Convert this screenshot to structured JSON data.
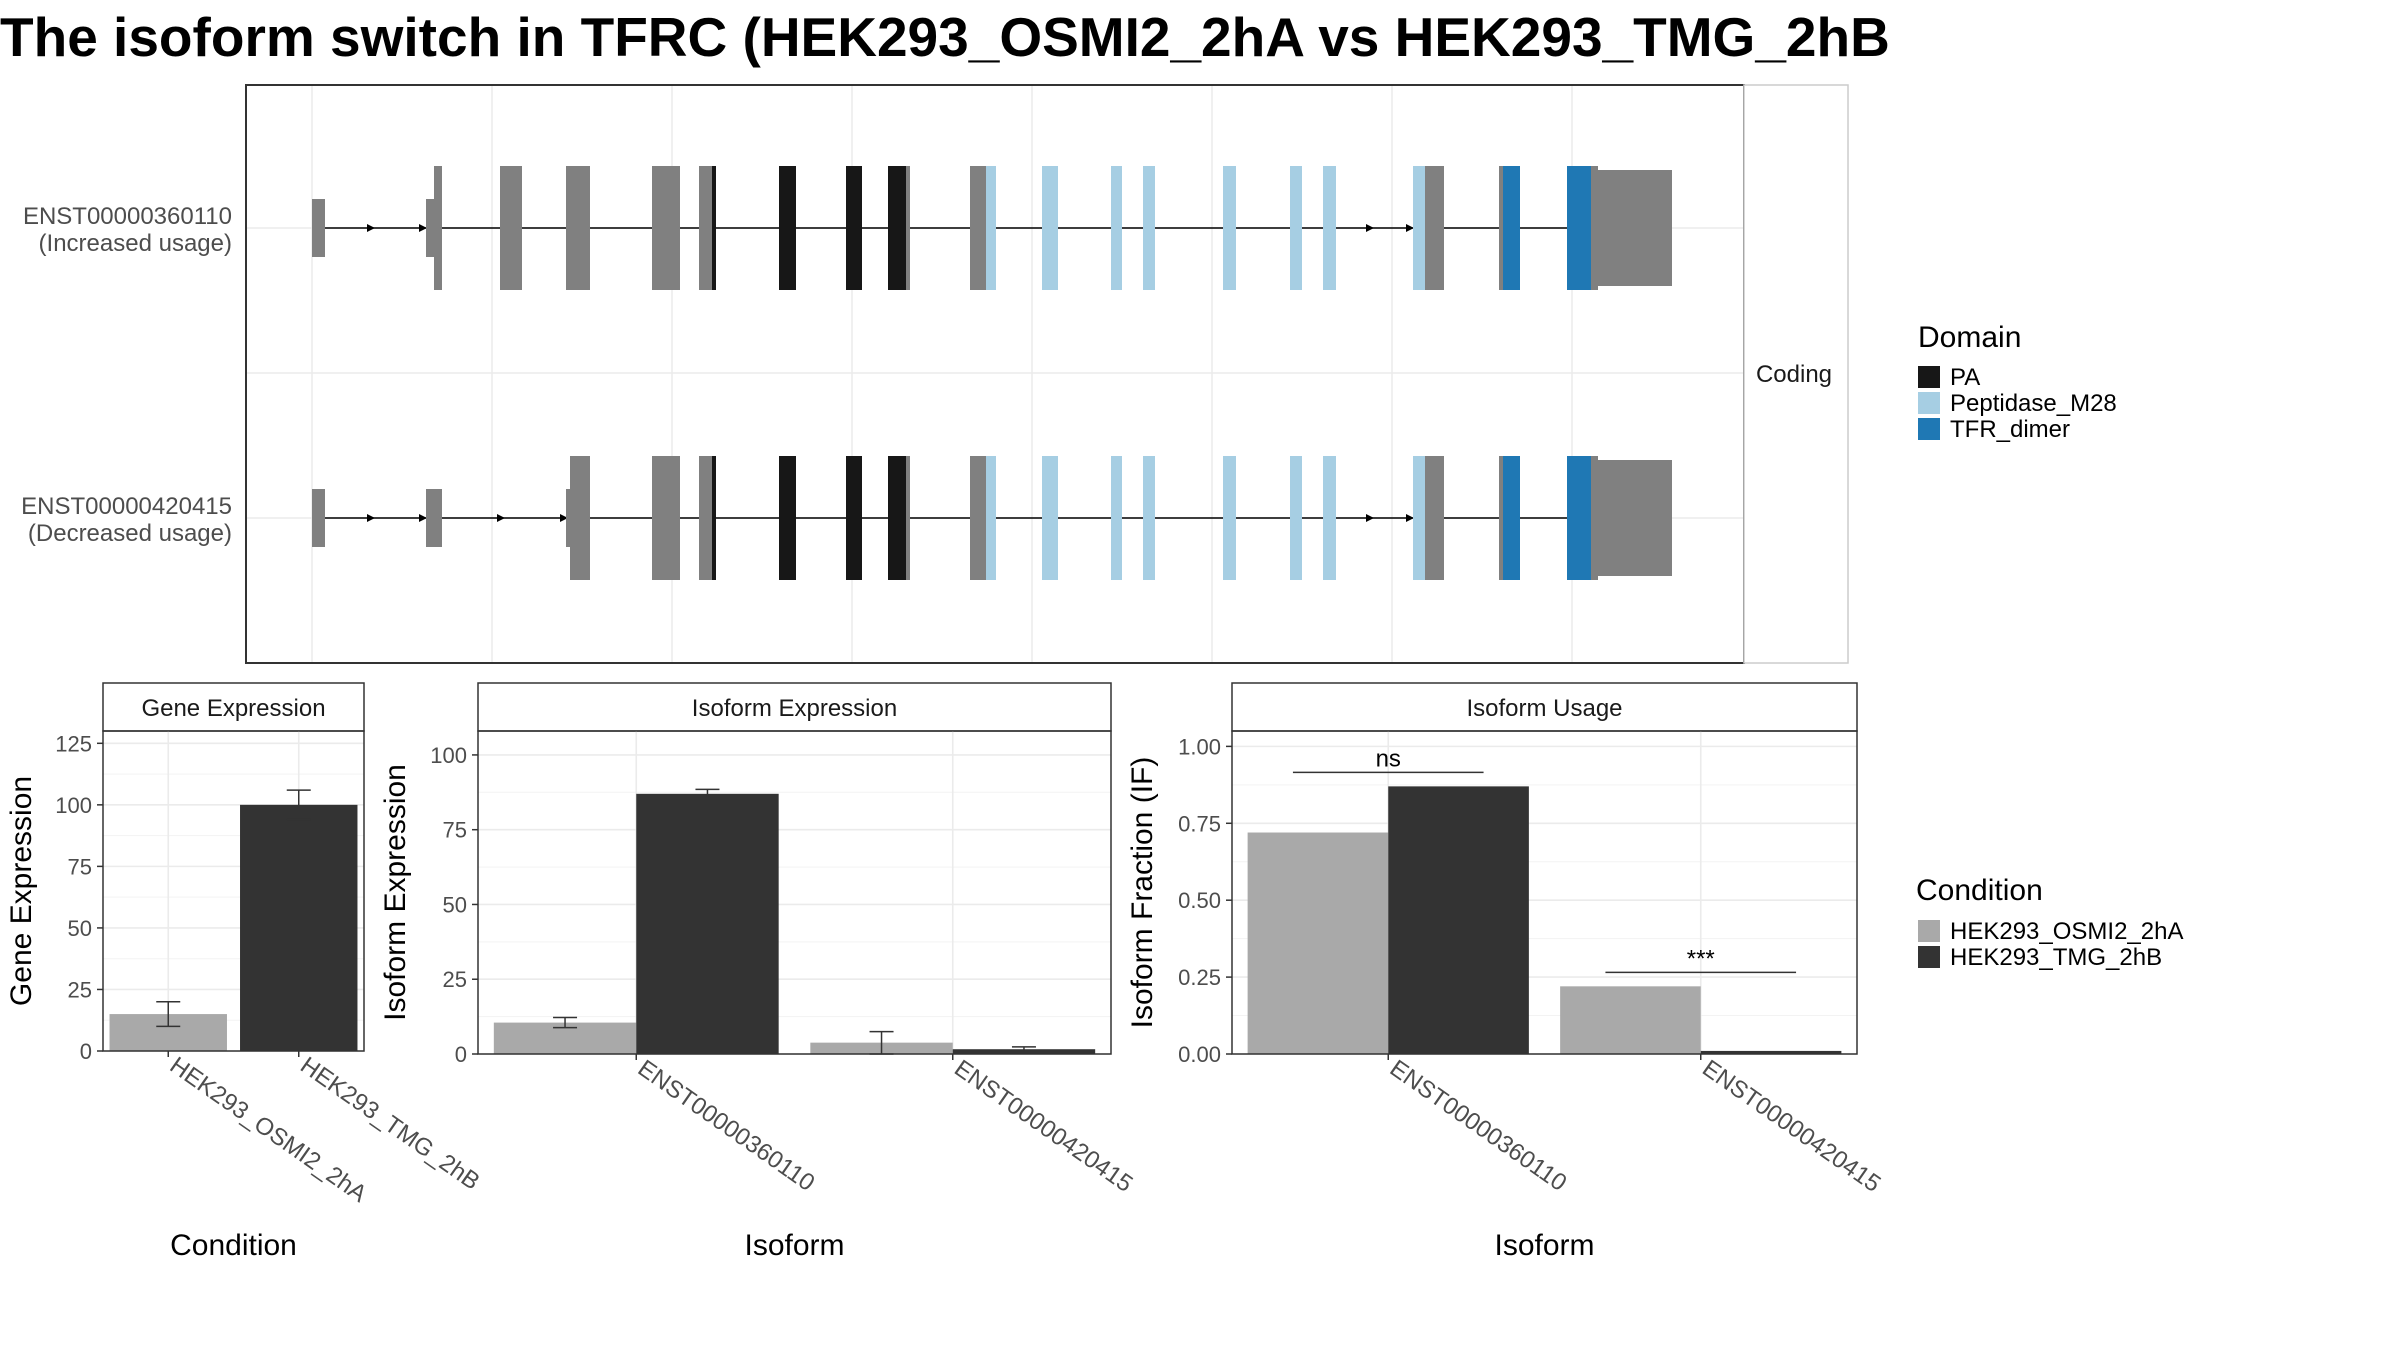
{
  "title": "The isoform switch in TFRC (HEK293_OSMI2_2hA vs HEK293_TMG_2hB",
  "strip_label": "Coding",
  "colors": {
    "exon": "#808080",
    "PA": "#171717",
    "Peptidase_M28": "#A6CEE3",
    "TFR_dimer": "#1F78B4",
    "cond_a": "#A9A9A9",
    "cond_b": "#333333"
  },
  "legends": {
    "domain": {
      "title": "Domain",
      "items": [
        {
          "label": "PA",
          "color": "#171717"
        },
        {
          "label": "Peptidase_M28",
          "color": "#A6CEE3"
        },
        {
          "label": "TFR_dimer",
          "color": "#1F78B4"
        }
      ]
    },
    "condition": {
      "title": "Condition",
      "items": [
        {
          "label": "HEK293_OSMI2_2hA",
          "color": "#A9A9A9"
        },
        {
          "label": "HEK293_TMG_2hB",
          "color": "#333333"
        }
      ]
    }
  },
  "chart_data": [
    {
      "type": "gene-structure",
      "tracks": [
        {
          "isoform": "ENST00000360110",
          "usage_label": "(Increased usage)"
        },
        {
          "isoform": "ENST00000420415",
          "usage_label": "(Decreased usage)"
        }
      ]
    },
    {
      "type": "bar",
      "title": "Gene Expression",
      "xlabel": "Condition",
      "ylabel": "Gene Expression",
      "categories": [
        "HEK293_OSMI2_2hA",
        "HEK293_TMG_2hB"
      ],
      "values": [
        15,
        100
      ],
      "errors": [
        [
          10,
          20
        ],
        [
          94,
          106
        ]
      ],
      "ylim": [
        0,
        130
      ],
      "yticks": [
        0,
        25,
        50,
        75,
        100,
        125
      ]
    },
    {
      "type": "bar",
      "title": "Isoform Expression",
      "xlabel": "Isoform",
      "ylabel": "Isoform Expression",
      "categories": [
        "ENST00000360110",
        "ENST00000420415"
      ],
      "series": [
        {
          "name": "HEK293_OSMI2_2hA",
          "values": [
            10.5,
            3.8
          ],
          "errors": [
            [
              8.8,
              12.2
            ],
            [
              0,
              7.5
            ]
          ]
        },
        {
          "name": "HEK293_TMG_2hB",
          "values": [
            87,
            1.6
          ],
          "errors": [
            [
              85.5,
              88.5
            ],
            [
              0.9,
              2.4
            ]
          ]
        }
      ],
      "ylim": [
        0,
        108
      ],
      "yticks": [
        0,
        25,
        50,
        75,
        100
      ]
    },
    {
      "type": "bar",
      "title": "Isoform Usage",
      "xlabel": "Isoform",
      "ylabel": "Isoform Fraction (IF)",
      "categories": [
        "ENST00000360110",
        "ENST00000420415"
      ],
      "series": [
        {
          "name": "HEK293_OSMI2_2hA",
          "values": [
            0.72,
            0.22
          ]
        },
        {
          "name": "HEK293_TMG_2hB",
          "values": [
            0.87,
            0.01
          ]
        }
      ],
      "significance": [
        "ns",
        "***"
      ],
      "ylim": [
        0,
        1.05
      ],
      "yticks": [
        "0.00",
        "0.25",
        "0.50",
        "0.75",
        "1.00"
      ]
    }
  ]
}
